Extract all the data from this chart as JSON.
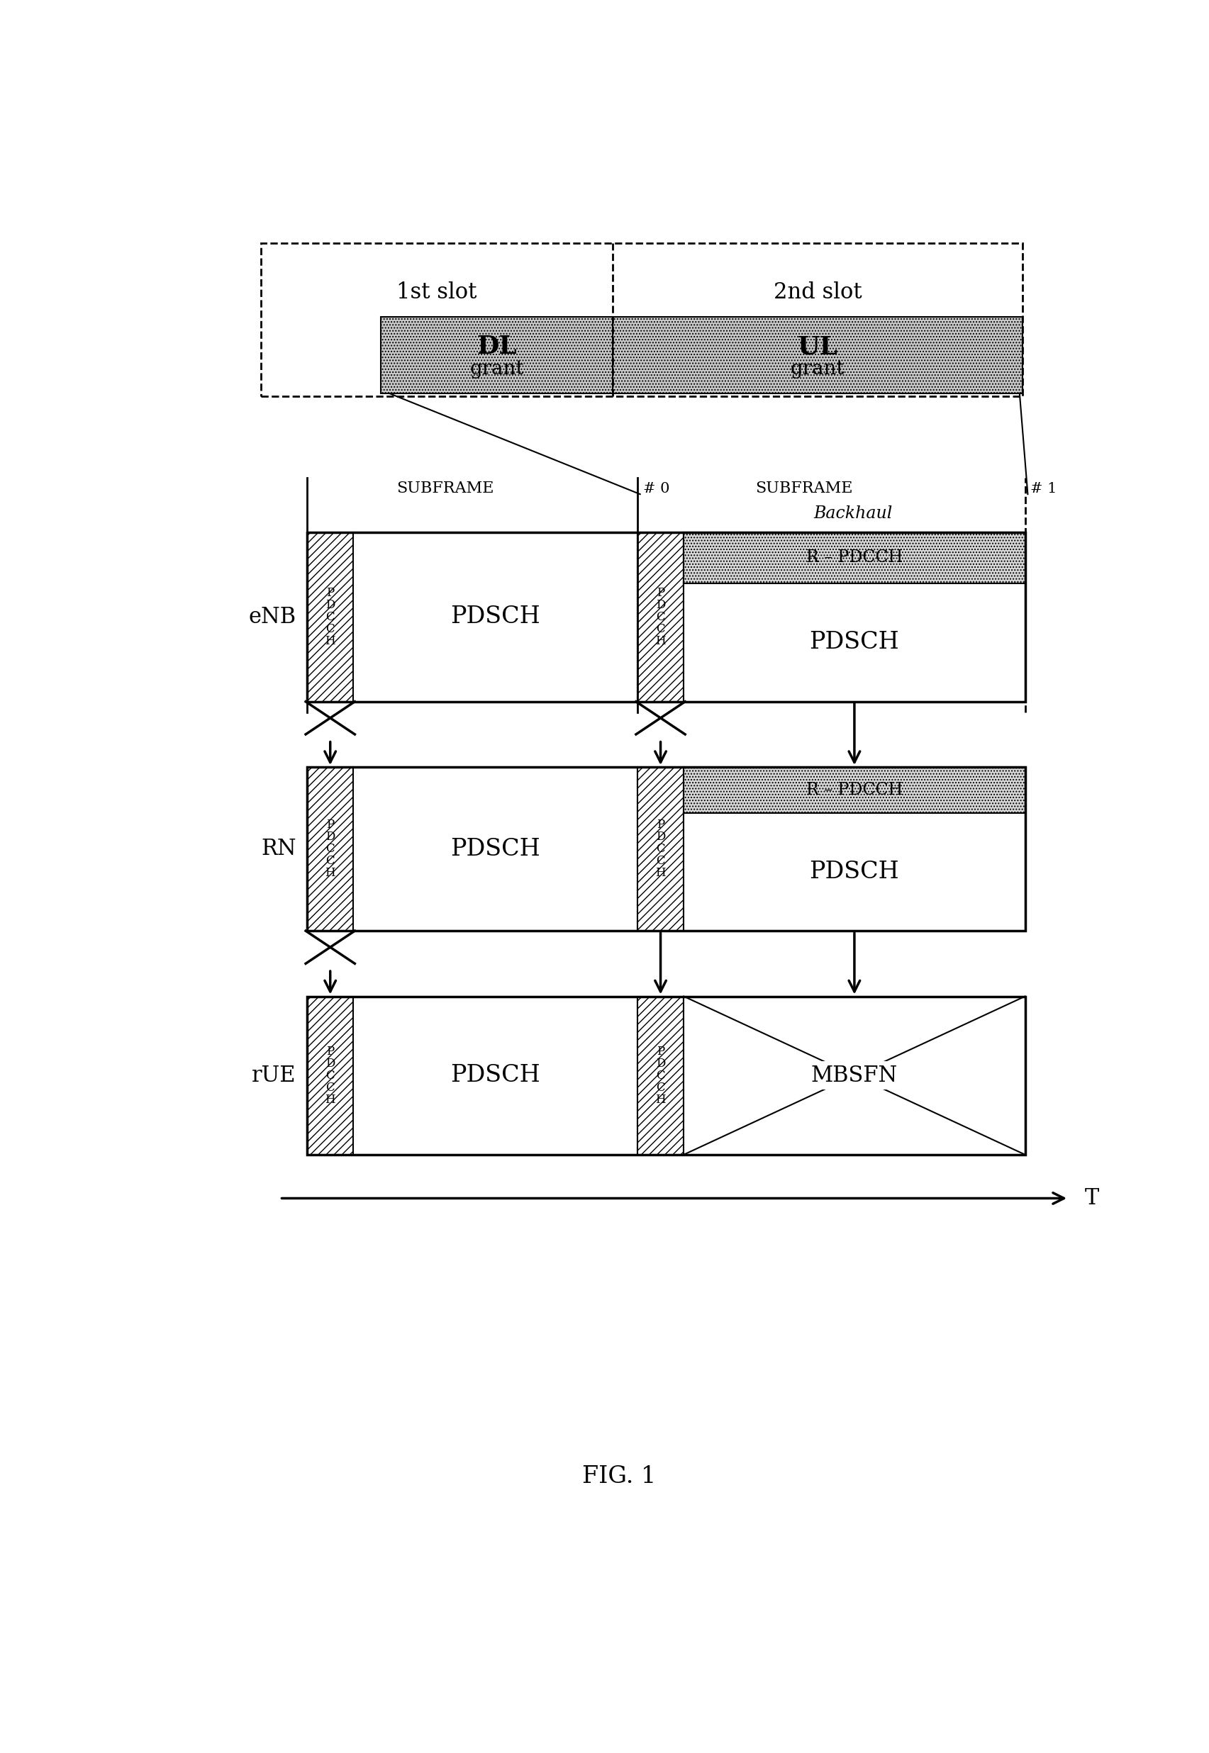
{
  "fig_width": 17.05,
  "fig_height": 24.73,
  "bg_color": "#ffffff",
  "title": "FIG. 1",
  "slot1_label": "1st slot",
  "slot2_label": "2nd slot",
  "dl_label": "DL",
  "ul_label": "UL",
  "grant_label": "grant",
  "subframe0_label": "SUBFRAME",
  "subframe1_label": "SUBFRAME",
  "hash0_label": "# 0",
  "hash1_label": "# 1",
  "backhaul_label": "Backhaul",
  "enb_label": "eNB",
  "rn_label": "RN",
  "rue_label": "rUE",
  "t_label": "T",
  "pdsch_label": "PDSCH",
  "r_pdcch_label": "R – PDCCH",
  "mbsfn_label": "MBSFN",
  "pdcch_chars": [
    "P",
    "D",
    "C",
    "C",
    "H"
  ]
}
